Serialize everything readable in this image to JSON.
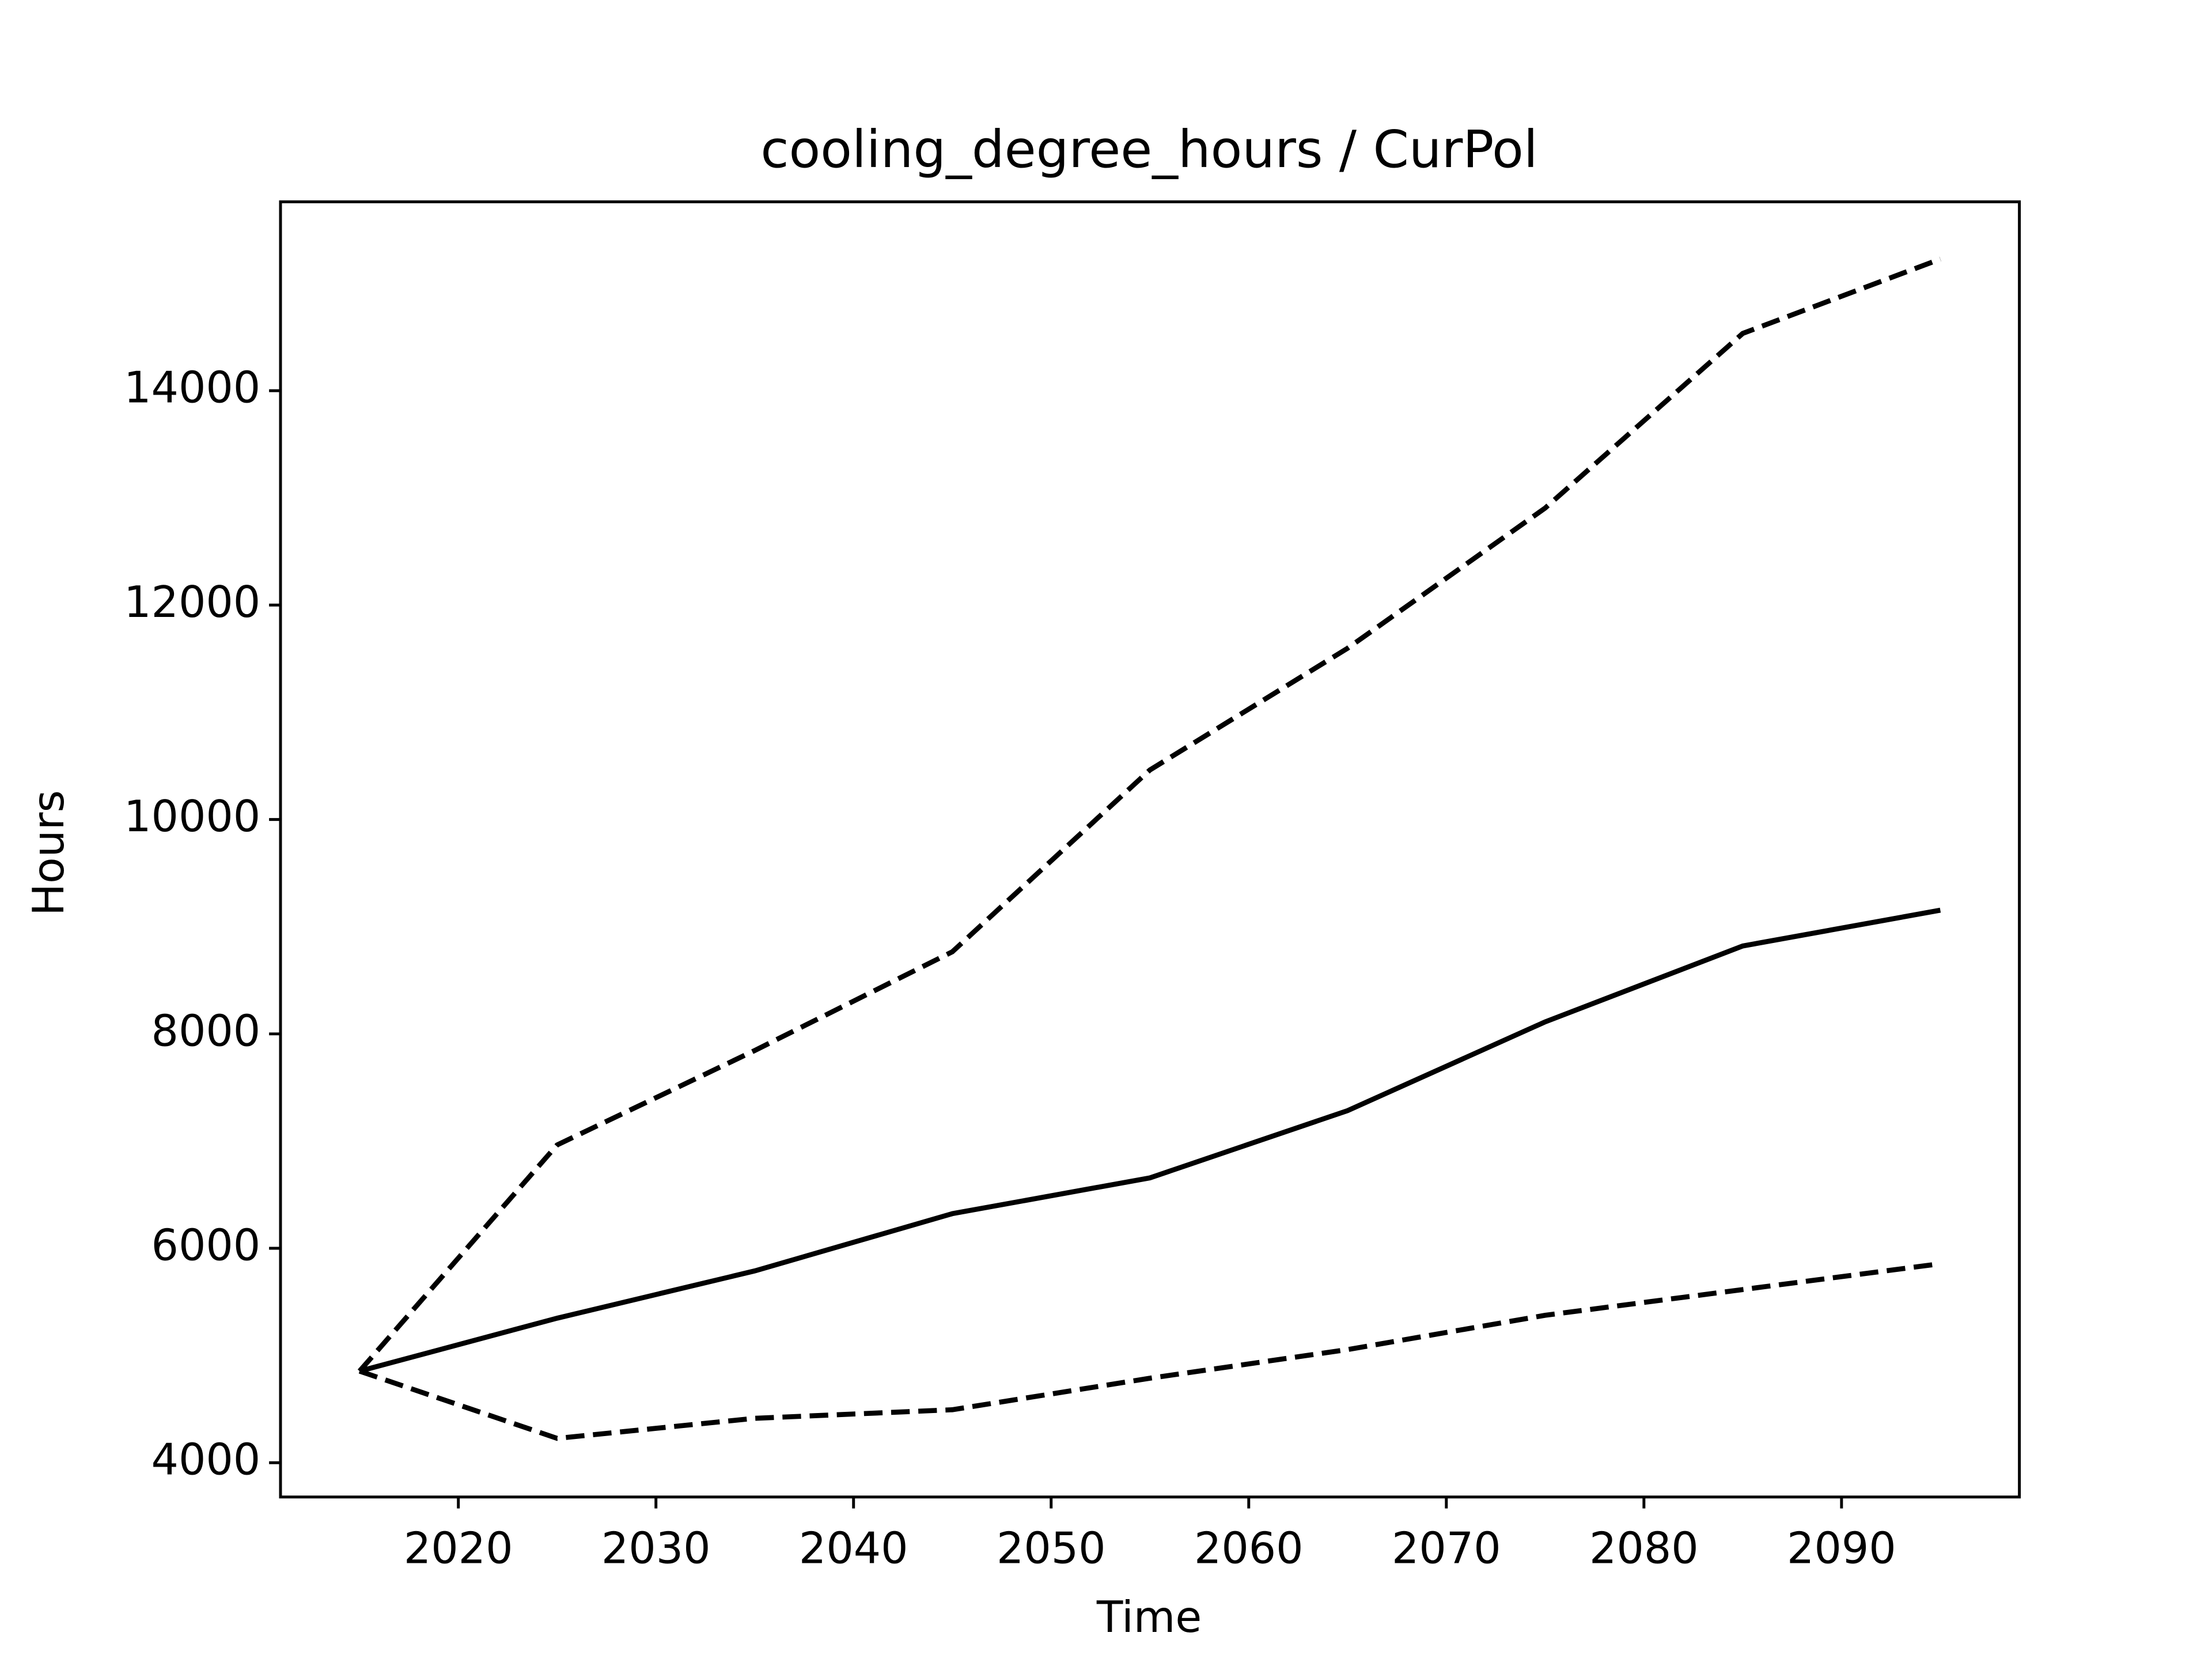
{
  "chart_data": {
    "type": "line",
    "title": "cooling_degree_hours / CurPol",
    "x_label": "Time",
    "y_label": "Hours",
    "x": [
      2015,
      2025,
      2035,
      2045,
      2055,
      2065,
      2075,
      2085,
      2095
    ],
    "series": [
      {
        "color": "#000000",
        "dash": "solid",
        "values": [
          4854,
          5348,
          5789,
          6323,
          6657,
          7284,
          8112,
          8820,
          9154
        ]
      },
      {
        "color": "#000000",
        "dash": "dashed",
        "values": [
          4854,
          6964,
          7845,
          8766,
          10462,
          11597,
          12905,
          14534,
          15228
        ]
      },
      {
        "color": "#000000",
        "dash": "dashed",
        "values": [
          4854,
          4227,
          4414,
          4494,
          4788,
          5055,
          5375,
          5615,
          5856
        ]
      }
    ],
    "xlim": [
      2011,
      2099
    ],
    "xticks": [
      2020,
      2030,
      2040,
      2050,
      2060,
      2070,
      2080,
      2090
    ],
    "ylim": [
      3680,
      15762
    ],
    "yticks": [
      4000,
      6000,
      8000,
      10000,
      12000,
      14000
    ],
    "grid": false
  }
}
